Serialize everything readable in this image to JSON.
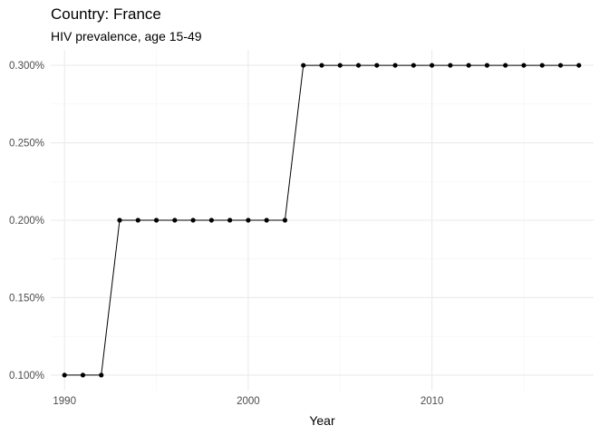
{
  "chart_data": {
    "type": "line",
    "title": "Country: France",
    "subtitle": "HIV prevalence, age 15-49",
    "xlabel": "Year",
    "ylabel": "",
    "x": [
      1990,
      1991,
      1992,
      1993,
      1994,
      1995,
      1996,
      1997,
      1998,
      1999,
      2000,
      2001,
      2002,
      2003,
      2004,
      2005,
      2006,
      2007,
      2008,
      2009,
      2010,
      2011,
      2012,
      2013,
      2014,
      2015,
      2016,
      2017,
      2018
    ],
    "series": [
      {
        "values": [
          0.1,
          0.1,
          0.1,
          0.2,
          0.2,
          0.2,
          0.2,
          0.2,
          0.2,
          0.2,
          0.2,
          0.2,
          0.2,
          0.3,
          0.3,
          0.3,
          0.3,
          0.3,
          0.3,
          0.3,
          0.3,
          0.3,
          0.3,
          0.3,
          0.3,
          0.3,
          0.3,
          0.3,
          0.3
        ]
      }
    ],
    "x_ticks": [
      1990,
      2000,
      2010
    ],
    "x_tick_labels": [
      "1990",
      "2000",
      "2010"
    ],
    "y_ticks": [
      0.1,
      0.15,
      0.2,
      0.25,
      0.3
    ],
    "y_tick_labels": [
      "0.100%",
      "0.150%",
      "0.200%",
      "0.250%",
      "0.300%"
    ],
    "xlim": [
      1989.25,
      2018.8
    ],
    "ylim": [
      0.09,
      0.31
    ],
    "grid": true,
    "legend": "none",
    "colors": {
      "line": "#000000",
      "point": "#000000",
      "grid_major": "#ebebeb",
      "grid_minor": "#f3f3f3",
      "tick_text": "#4d4d4d"
    }
  }
}
